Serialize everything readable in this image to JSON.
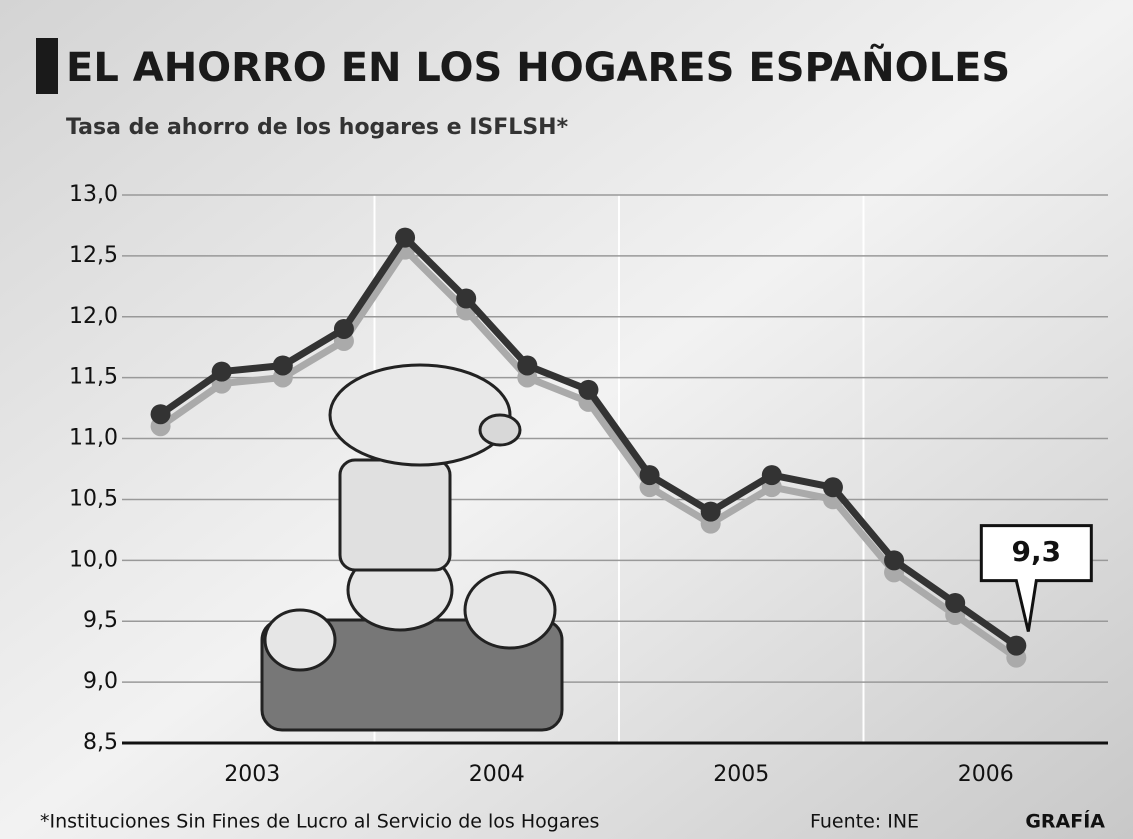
{
  "chart_data": {
    "type": "line",
    "title": "EL AHORRO EN LOS HOGARES ESPAÑOLES",
    "subtitle": "Tasa de ahorro de los hogares e ISFLSH*",
    "years": [
      "2003",
      "2004",
      "2005",
      "2006"
    ],
    "values": [
      11.2,
      11.55,
      11.6,
      11.9,
      12.65,
      12.15,
      11.6,
      11.4,
      10.7,
      10.4,
      10.7,
      10.6,
      10.0,
      9.65,
      9.3
    ],
    "value_labels": [
      null,
      null,
      null,
      null,
      null,
      null,
      null,
      null,
      null,
      null,
      null,
      null,
      null,
      null,
      "9,3"
    ],
    "color": "#333333",
    "ylim": [
      8.5,
      13.0
    ],
    "yticks": [
      {
        "value": 8.5,
        "label": "8,5"
      },
      {
        "value": 9.0,
        "label": "9,0"
      },
      {
        "value": 9.5,
        "label": "9,5"
      },
      {
        "value": 10.0,
        "label": "10,0"
      },
      {
        "value": 10.5,
        "label": "10,5"
      },
      {
        "value": 11.0,
        "label": "11,0"
      },
      {
        "value": 11.5,
        "label": "11,5"
      },
      {
        "value": 12.0,
        "label": "12,0"
      },
      {
        "value": 12.5,
        "label": "12,5"
      },
      {
        "value": 13.0,
        "label": "13,0"
      }
    ],
    "grid": true,
    "footnote": "*Instituciones Sin Fines de Lucro al Servicio de los Hogares",
    "source": "Fuente: INE",
    "credit": "GRAFÍA"
  }
}
